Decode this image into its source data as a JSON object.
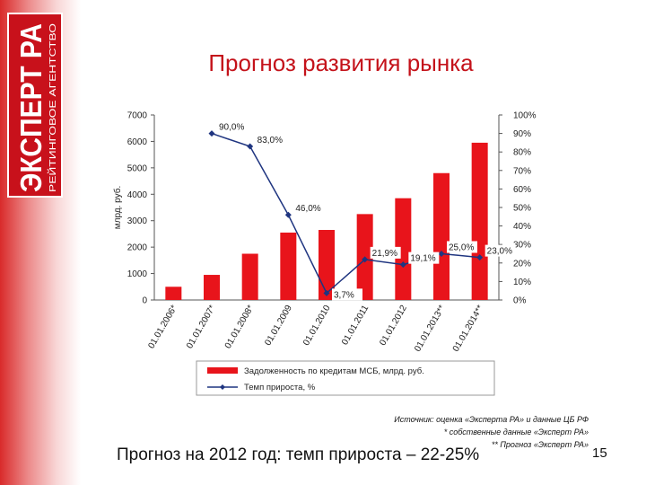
{
  "logo": {
    "main_text": "ЭКСПЕРТ РА",
    "sub_text": "РЕЙТИНГОВОЕ АГЕНТСТВО",
    "background_color": "#c8111b"
  },
  "slide": {
    "title": "Прогноз развития рынка",
    "forecast": "Прогноз на 2012 год: темп прироста – 22-25%",
    "page_number": "15",
    "source_lines": [
      "Источник: оценка «Эксперта РА» и данные ЦБ РФ",
      "* собственные данные «Эксперт РА»",
      "** Прогноз «Эксперт РА»"
    ],
    "title_color": "#c4121a"
  },
  "chart_data": {
    "type": "bar",
    "categories": [
      "01.01.2006*",
      "01.01.2007*",
      "01.01.2008*",
      "01.01.2009",
      "01.01.2010",
      "01.01.2011",
      "01.01.2012",
      "01.01.2013**",
      "01.01.2014**"
    ],
    "ylabel": "млрд. руб.",
    "ylim": [
      0,
      7000
    ],
    "yticks": [
      0,
      1000,
      2000,
      3000,
      4000,
      5000,
      6000,
      7000
    ],
    "y2lim": [
      0,
      100
    ],
    "y2ticks": [
      "0%",
      "10%",
      "20%",
      "30%",
      "40%",
      "50%",
      "60%",
      "70%",
      "80%",
      "90%",
      "100%"
    ],
    "legend_position": "bottom",
    "grid": false,
    "series": [
      {
        "name": "Задолженность по кредитам МСБ, млрд. руб.",
        "type": "bar",
        "axis": "left",
        "color": "#e8141b",
        "values": [
          500,
          950,
          1750,
          2550,
          2650,
          3250,
          3850,
          4800,
          5950
        ]
      },
      {
        "name": "Темп прироста, %",
        "type": "line",
        "axis": "right",
        "color": "#1f3580",
        "values": [
          null,
          90.0,
          83.0,
          46.0,
          3.7,
          21.9,
          19.1,
          25.0,
          23.0
        ],
        "labels": [
          "",
          "90,0%",
          "83,0%",
          "46,0%",
          "3,7%",
          "21,9%",
          "19,1%",
          "25,0%",
          "23,0%"
        ]
      }
    ]
  }
}
